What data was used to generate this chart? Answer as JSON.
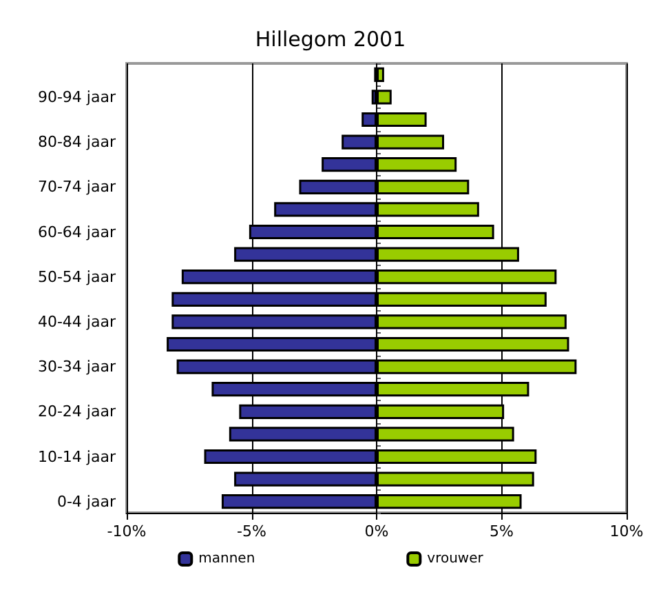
{
  "chart_data": {
    "type": "bar",
    "orientation": "horizontal",
    "title": "Hillegom 2001",
    "categories": [
      null,
      "90-94 jaar",
      null,
      "80-84 jaar",
      null,
      "70-74 jaar",
      null,
      "60-64 jaar",
      null,
      "50-54 jaar",
      null,
      "40-44 jaar",
      null,
      "30-34 jaar",
      null,
      "20-24 jaar",
      null,
      "10-14 jaar",
      null,
      "0-4 jaar"
    ],
    "series": [
      {
        "name": "mannen",
        "color": "#333399",
        "values": [
          -0.1,
          -0.2,
          -0.6,
          -1.4,
          -2.2,
          -3.1,
          -4.1,
          -5.1,
          -5.7,
          -7.8,
          -8.2,
          -8.2,
          -8.4,
          -8.0,
          -6.6,
          -5.5,
          -5.9,
          -6.9,
          -5.7,
          -6.2
        ]
      },
      {
        "name": "vrouwer",
        "color": "#99cc00",
        "values": [
          0.3,
          0.6,
          2.0,
          2.7,
          3.2,
          3.7,
          4.1,
          4.7,
          5.7,
          7.2,
          6.8,
          7.6,
          7.7,
          8.0,
          6.1,
          5.1,
          5.5,
          6.4,
          6.3,
          5.8
        ]
      }
    ],
    "xlim": [
      -10,
      10
    ],
    "xticks": [
      {
        "value": -10,
        "label": "-10%"
      },
      {
        "value": -5,
        "label": "-5%"
      },
      {
        "value": 0,
        "label": "0%"
      },
      {
        "value": 5,
        "label": "5%"
      },
      {
        "value": 10,
        "label": "10%"
      }
    ],
    "grid": "x",
    "legend": "bottom",
    "stacked": true
  }
}
